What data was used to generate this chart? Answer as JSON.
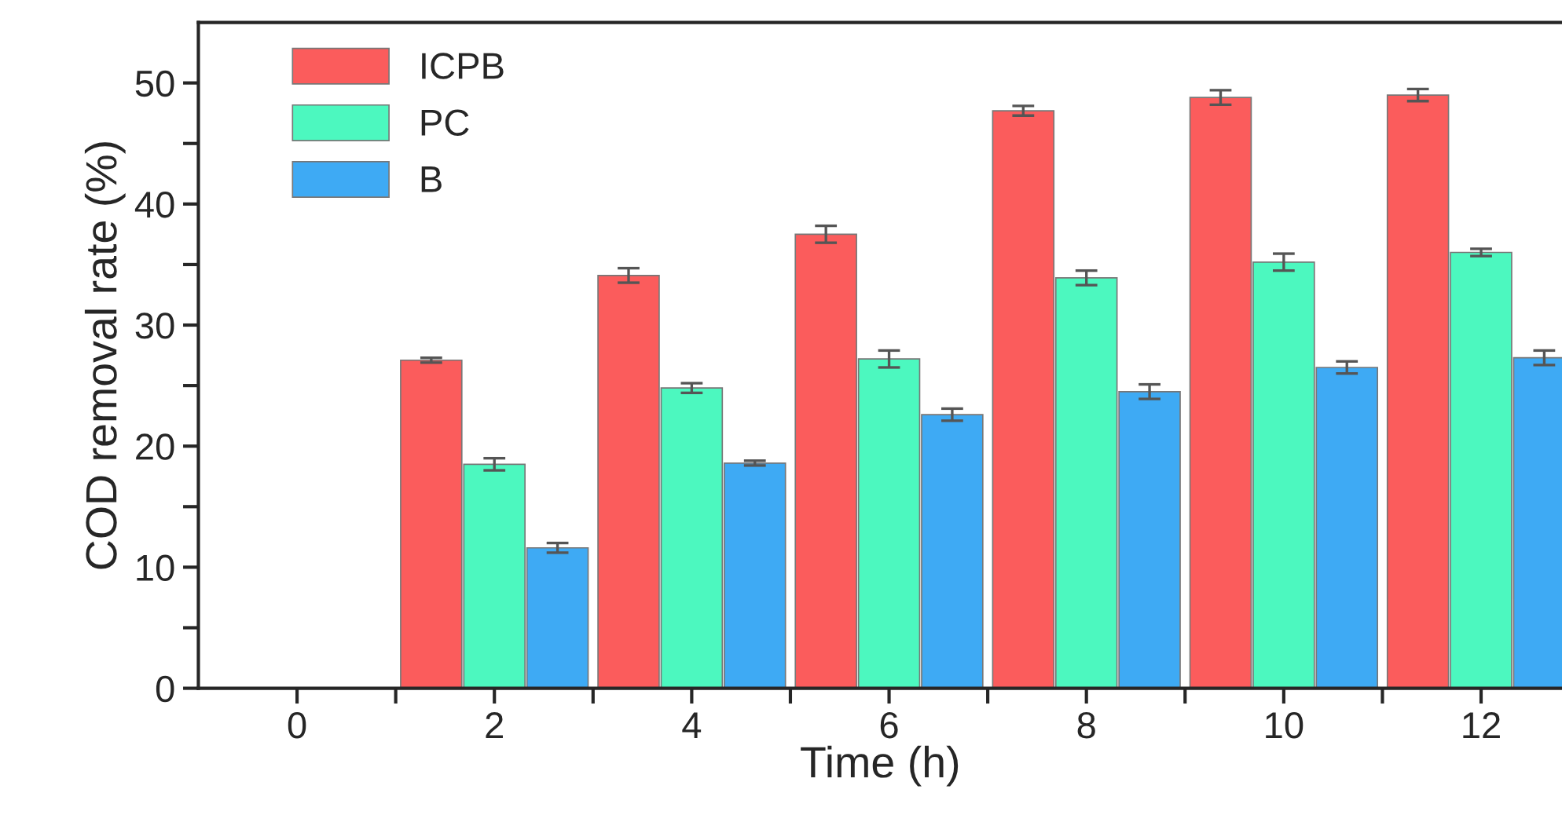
{
  "chart_data": {
    "type": "bar",
    "xlabel": "Time (h)",
    "ylabel": "COD removal rate (%)",
    "x": [
      2,
      4,
      6,
      8,
      10,
      12
    ],
    "series": [
      {
        "name": "ICPB",
        "color": "#fb5c5c",
        "values": [
          27.1,
          34.1,
          37.5,
          47.7,
          48.8,
          49.0
        ],
        "errors": [
          0.2,
          0.6,
          0.7,
          0.4,
          0.6,
          0.5
        ]
      },
      {
        "name": "PC",
        "color": "#4cf8bf",
        "values": [
          18.5,
          24.8,
          27.2,
          33.9,
          35.2,
          36.0
        ],
        "errors": [
          0.5,
          0.4,
          0.7,
          0.6,
          0.7,
          0.3
        ]
      },
      {
        "name": "B",
        "color": "#3eaaf4",
        "values": [
          11.6,
          18.6,
          22.6,
          24.5,
          26.5,
          27.3
        ],
        "errors": [
          0.4,
          0.2,
          0.5,
          0.6,
          0.5,
          0.6
        ]
      }
    ],
    "xlim": [
      -1,
      12.82
    ],
    "ylim": [
      0,
      55
    ],
    "xticks": [
      0,
      {
        "value": 1,
        "label": null
      },
      2,
      {
        "value": 3,
        "label": null
      },
      4,
      {
        "value": 5,
        "label": null
      },
      6,
      {
        "value": 7,
        "label": null
      },
      8,
      {
        "value": 9,
        "label": null
      },
      10,
      {
        "value": 11,
        "label": null
      },
      12
    ],
    "yticks": [
      0,
      {
        "value": 5,
        "label": null
      },
      10,
      {
        "value": 15,
        "label": null
      },
      20,
      {
        "value": 25,
        "label": null
      },
      30,
      {
        "value": 35,
        "label": null
      },
      40,
      {
        "value": 45,
        "label": null
      },
      50
    ],
    "grid": false,
    "legend": "top left"
  }
}
